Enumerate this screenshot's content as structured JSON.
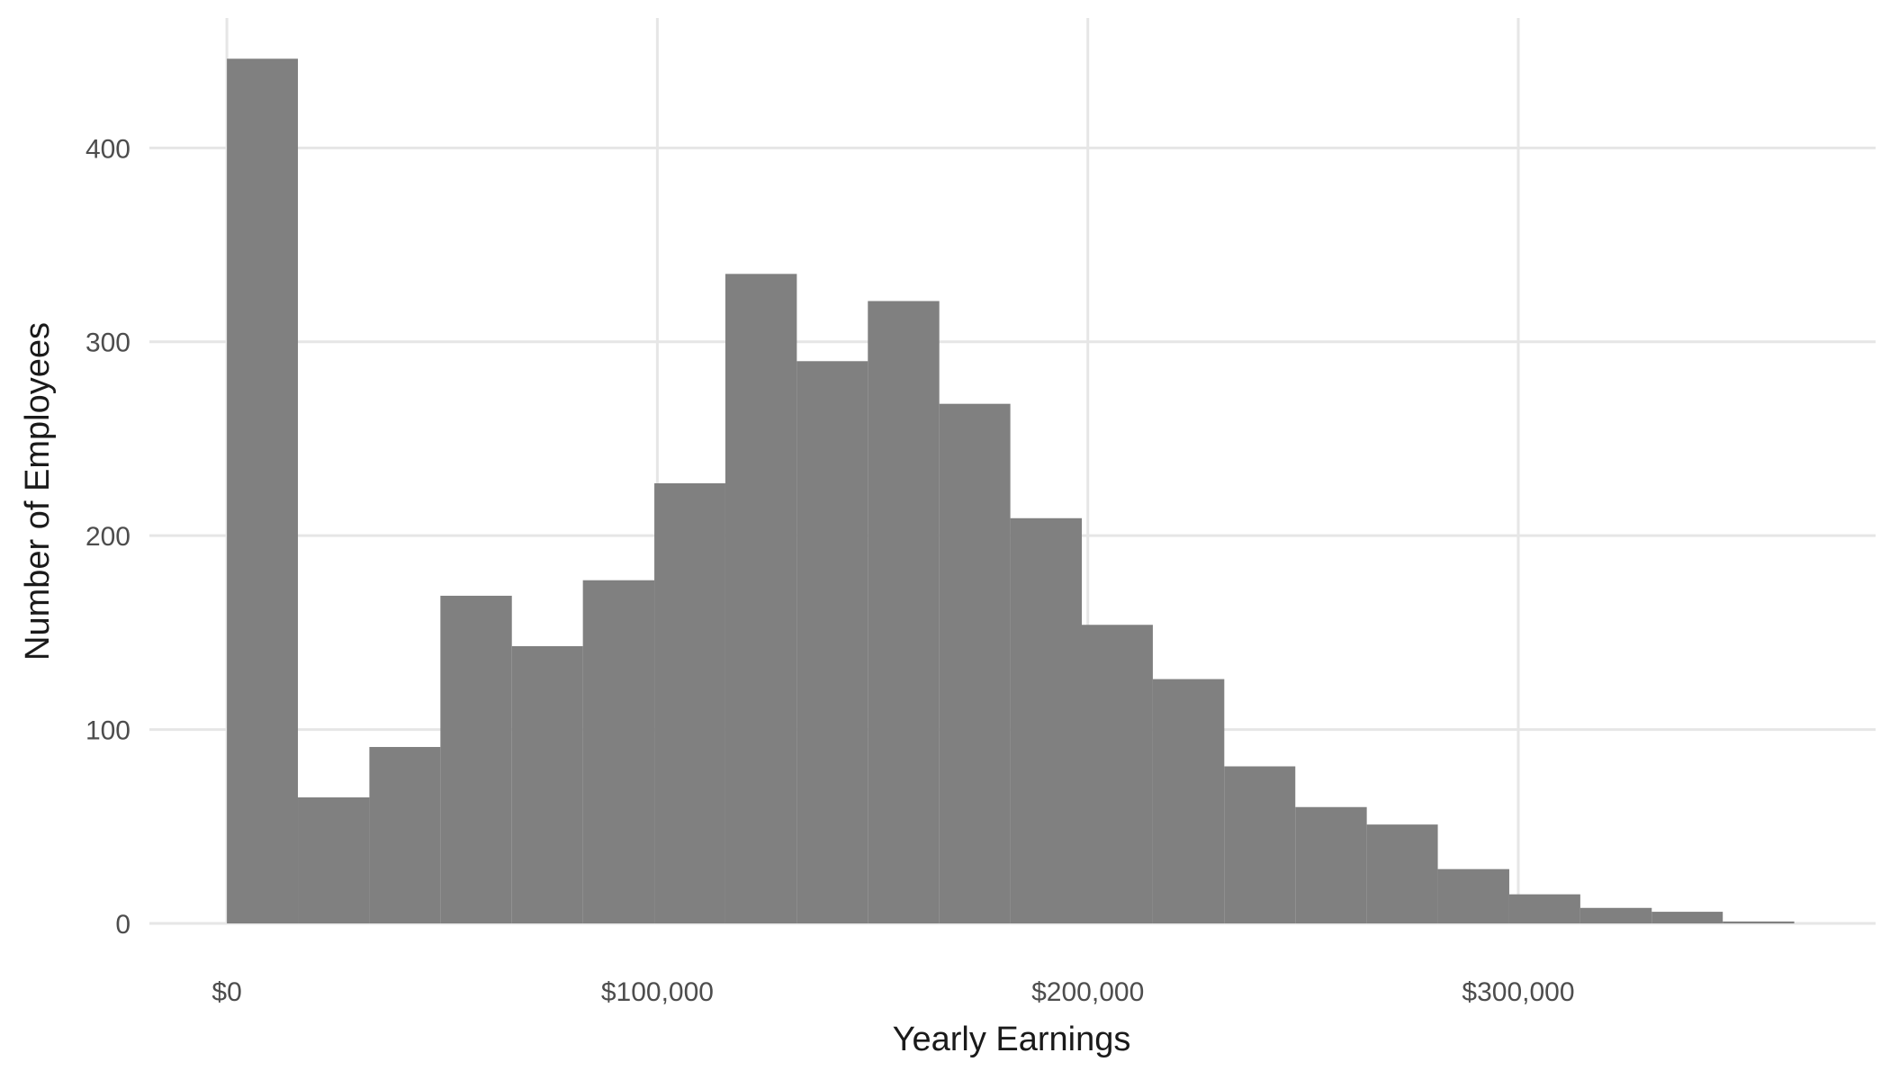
{
  "chart_data": {
    "type": "bar",
    "subtype": "histogram",
    "title": "",
    "xlabel": "Yearly Earnings",
    "ylabel": "Number of Employees",
    "bar_color": "#808080",
    "bar_opacity": 1,
    "grid": true,
    "grid_color": "#e6e6e6",
    "xlim": [
      -18000,
      383000
    ],
    "ylim": [
      0,
      467
    ],
    "x_ticks": [
      {
        "value": 0,
        "label": "$0"
      },
      {
        "value": 100000,
        "label": "$100,000"
      },
      {
        "value": 200000,
        "label": "$200,000"
      },
      {
        "value": 300000,
        "label": "$300,000"
      }
    ],
    "y_ticks": [
      {
        "value": 0,
        "label": "0"
      },
      {
        "value": 100,
        "label": "100"
      },
      {
        "value": 200,
        "label": "200"
      },
      {
        "value": 300,
        "label": "300"
      },
      {
        "value": 400,
        "label": "400"
      }
    ],
    "bins": [
      {
        "x0": 0,
        "x1": 16500,
        "count": 446
      },
      {
        "x0": 16500,
        "x1": 33100,
        "count": 65
      },
      {
        "x0": 33100,
        "x1": 49600,
        "count": 91
      },
      {
        "x0": 49600,
        "x1": 66200,
        "count": 169
      },
      {
        "x0": 66200,
        "x1": 82700,
        "count": 143
      },
      {
        "x0": 82700,
        "x1": 99300,
        "count": 177
      },
      {
        "x0": 99300,
        "x1": 115800,
        "count": 227
      },
      {
        "x0": 115800,
        "x1": 132400,
        "count": 335
      },
      {
        "x0": 132400,
        "x1": 148900,
        "count": 290
      },
      {
        "x0": 148900,
        "x1": 165500,
        "count": 321
      },
      {
        "x0": 165500,
        "x1": 182000,
        "count": 268
      },
      {
        "x0": 182000,
        "x1": 198600,
        "count": 209
      },
      {
        "x0": 198600,
        "x1": 215100,
        "count": 154
      },
      {
        "x0": 215100,
        "x1": 231700,
        "count": 126
      },
      {
        "x0": 231700,
        "x1": 248200,
        "count": 81
      },
      {
        "x0": 248200,
        "x1": 264800,
        "count": 60
      },
      {
        "x0": 264800,
        "x1": 281300,
        "count": 51
      },
      {
        "x0": 281300,
        "x1": 297900,
        "count": 28
      },
      {
        "x0": 297900,
        "x1": 314400,
        "count": 15
      },
      {
        "x0": 314400,
        "x1": 331000,
        "count": 8
      },
      {
        "x0": 331000,
        "x1": 347500,
        "count": 6
      },
      {
        "x0": 347500,
        "x1": 364100,
        "count": 1
      }
    ]
  }
}
